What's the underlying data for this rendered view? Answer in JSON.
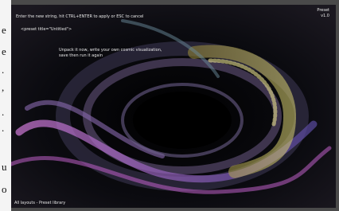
{
  "window": {
    "prompt": "Enter the new string, hit CTRL+ENTER to apply or ESC to cancel",
    "input": "<preset title=\"Untitled\">",
    "message": [
      "Unpack it now, write your own cosmic visualization,",
      "save then run it again"
    ],
    "top_right": [
      "Preset",
      "v1.0"
    ],
    "status": "All layouts - Preset library"
  },
  "side_text": [
    "e",
    "e",
    ".",
    ",",
    ".",
    ".",
    "u",
    "o"
  ]
}
